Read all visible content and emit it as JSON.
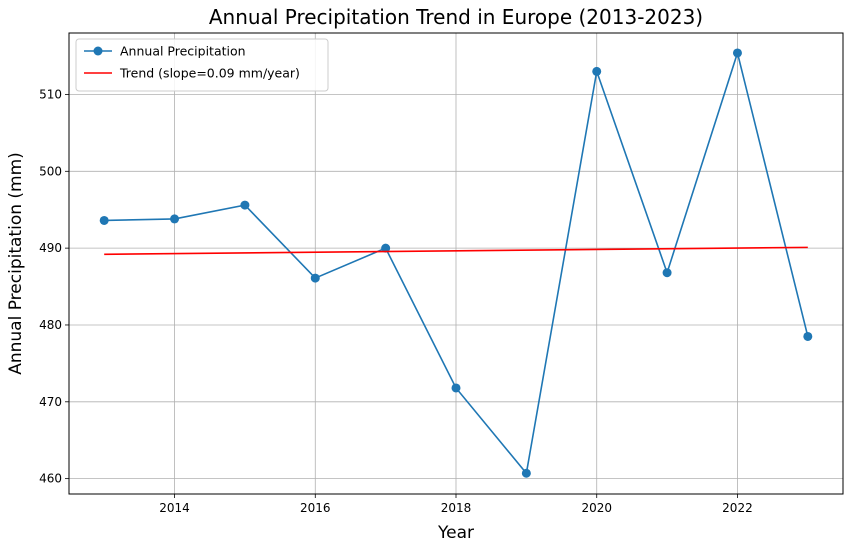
{
  "chart_data": {
    "type": "line",
    "title": "Annual Precipitation Trend in Europe (2013-2023)",
    "xlabel": "Year",
    "ylabel": "Annual Precipitation (mm)",
    "xlim": [
      2012.5,
      2023.5
    ],
    "ylim": [
      458,
      518
    ],
    "xticks": [
      2014,
      2016,
      2018,
      2020,
      2022
    ],
    "yticks": [
      460,
      470,
      480,
      490,
      500,
      510
    ],
    "grid": true,
    "legend_position": "top-left",
    "series": [
      {
        "name": "Annual Precipitation",
        "color": "#1f77b4",
        "marker": "circle",
        "x": [
          2013,
          2014,
          2015,
          2016,
          2017,
          2018,
          2019,
          2020,
          2021,
          2022,
          2023
        ],
        "y": [
          493.6,
          493.8,
          495.6,
          486.1,
          490.0,
          471.8,
          460.7,
          513.0,
          486.8,
          515.4,
          478.5
        ]
      },
      {
        "name": "Trend (slope=0.09 mm/year)",
        "color": "#ff0000",
        "marker": "none",
        "x": [
          2013,
          2023
        ],
        "y": [
          489.2,
          490.1
        ]
      }
    ]
  }
}
